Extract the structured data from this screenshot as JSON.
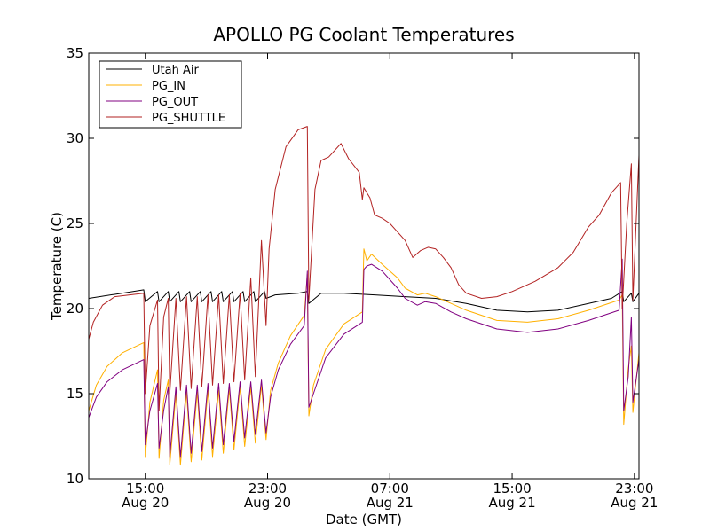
{
  "chart_data": {
    "type": "line",
    "title": "APOLLO PG Coolant Temperatures",
    "xlabel": "Date (GMT)",
    "ylabel": "Temperature (C)",
    "x_unit": "hours since Aug 20 00:00 GMT",
    "xlim": [
      11.3,
      47.3
    ],
    "ylim": [
      10,
      35
    ],
    "yticks": [
      10,
      15,
      20,
      25,
      30,
      35
    ],
    "xticks": [
      {
        "x": 15,
        "line1": "15:00",
        "line2": "Aug 20"
      },
      {
        "x": 23,
        "line1": "23:00",
        "line2": "Aug 20"
      },
      {
        "x": 31,
        "line1": "07:00",
        "line2": "Aug 21"
      },
      {
        "x": 39,
        "line1": "15:00",
        "line2": "Aug 21"
      },
      {
        "x": 47,
        "line1": "23:00",
        "line2": "Aug 21"
      }
    ],
    "legend_position": "top-left",
    "series": [
      {
        "name": "Utah Air",
        "color": "#000000",
        "points": [
          [
            11.3,
            20.6
          ],
          [
            14.9,
            21.1
          ],
          [
            15.0,
            20.4
          ],
          [
            15.8,
            21.0
          ],
          [
            15.9,
            20.4
          ],
          [
            16.5,
            21.0
          ],
          [
            16.6,
            20.4
          ],
          [
            17.2,
            21.0
          ],
          [
            17.3,
            20.4
          ],
          [
            17.9,
            21.0
          ],
          [
            18.0,
            20.4
          ],
          [
            18.6,
            21.0
          ],
          [
            18.7,
            20.4
          ],
          [
            19.3,
            21.0
          ],
          [
            19.4,
            20.4
          ],
          [
            20.0,
            21.0
          ],
          [
            20.1,
            20.4
          ],
          [
            20.7,
            21.0
          ],
          [
            20.8,
            20.4
          ],
          [
            21.4,
            21.0
          ],
          [
            21.5,
            20.4
          ],
          [
            22.1,
            21.0
          ],
          [
            22.2,
            20.4
          ],
          [
            22.8,
            21.0
          ],
          [
            22.9,
            20.6
          ],
          [
            23.5,
            20.8
          ],
          [
            25.0,
            20.9
          ],
          [
            25.6,
            21.0
          ],
          [
            25.7,
            20.3
          ],
          [
            26.5,
            20.9
          ],
          [
            28.0,
            20.9
          ],
          [
            30.0,
            20.8
          ],
          [
            32.0,
            20.7
          ],
          [
            34.0,
            20.6
          ],
          [
            36.0,
            20.3
          ],
          [
            38.0,
            19.9
          ],
          [
            40.0,
            19.8
          ],
          [
            42.0,
            19.9
          ],
          [
            44.0,
            20.3
          ],
          [
            45.5,
            20.6
          ],
          [
            46.2,
            21.0
          ],
          [
            46.3,
            20.4
          ],
          [
            46.8,
            20.9
          ],
          [
            46.9,
            20.4
          ],
          [
            47.3,
            20.9
          ]
        ]
      },
      {
        "name": "PG_IN",
        "color": "#ffb000",
        "points": [
          [
            11.3,
            14.0
          ],
          [
            11.8,
            15.5
          ],
          [
            12.5,
            16.6
          ],
          [
            13.5,
            17.4
          ],
          [
            14.9,
            18.0
          ],
          [
            15.0,
            11.3
          ],
          [
            15.3,
            14.5
          ],
          [
            15.8,
            16.4
          ],
          [
            15.9,
            11.2
          ],
          [
            16.2,
            14.6
          ],
          [
            16.5,
            15.8
          ],
          [
            16.6,
            10.8
          ],
          [
            17.0,
            15.0
          ],
          [
            17.3,
            10.8
          ],
          [
            17.7,
            15.1
          ],
          [
            18.0,
            11.0
          ],
          [
            18.4,
            15.1
          ],
          [
            18.7,
            11.1
          ],
          [
            19.1,
            15.2
          ],
          [
            19.4,
            11.3
          ],
          [
            19.8,
            15.2
          ],
          [
            20.1,
            11.5
          ],
          [
            20.5,
            15.3
          ],
          [
            20.8,
            11.7
          ],
          [
            21.2,
            15.4
          ],
          [
            21.5,
            11.9
          ],
          [
            21.9,
            15.4
          ],
          [
            22.2,
            12.1
          ],
          [
            22.6,
            15.5
          ],
          [
            22.9,
            12.3
          ],
          [
            23.2,
            15.2
          ],
          [
            23.7,
            16.8
          ],
          [
            24.5,
            18.4
          ],
          [
            25.4,
            19.6
          ],
          [
            25.6,
            22.0
          ],
          [
            25.7,
            13.7
          ],
          [
            26.0,
            15.5
          ],
          [
            26.8,
            17.6
          ],
          [
            28.0,
            19.1
          ],
          [
            29.2,
            19.8
          ],
          [
            29.3,
            23.5
          ],
          [
            29.5,
            22.8
          ],
          [
            29.8,
            23.2
          ],
          [
            30.5,
            22.6
          ],
          [
            31.5,
            21.8
          ],
          [
            32.0,
            21.2
          ],
          [
            32.8,
            20.8
          ],
          [
            33.3,
            20.9
          ],
          [
            34.0,
            20.7
          ],
          [
            35.0,
            20.3
          ],
          [
            36.0,
            19.9
          ],
          [
            38.0,
            19.3
          ],
          [
            40.0,
            19.2
          ],
          [
            42.0,
            19.4
          ],
          [
            44.0,
            19.9
          ],
          [
            46.0,
            20.5
          ],
          [
            46.2,
            20.8
          ],
          [
            46.3,
            13.2
          ],
          [
            46.6,
            16.5
          ],
          [
            46.8,
            17.8
          ],
          [
            46.9,
            13.9
          ],
          [
            47.3,
            17.4
          ]
        ]
      },
      {
        "name": "PG_OUT",
        "color": "#800080",
        "points": [
          [
            11.3,
            13.6
          ],
          [
            11.8,
            14.8
          ],
          [
            12.5,
            15.7
          ],
          [
            13.5,
            16.4
          ],
          [
            14.9,
            17.0
          ],
          [
            15.0,
            12.0
          ],
          [
            15.3,
            14.0
          ],
          [
            15.8,
            15.6
          ],
          [
            15.9,
            11.8
          ],
          [
            16.2,
            14.0
          ],
          [
            16.5,
            15.4
          ],
          [
            16.6,
            11.3
          ],
          [
            17.0,
            15.4
          ],
          [
            17.3,
            11.3
          ],
          [
            17.7,
            15.5
          ],
          [
            18.0,
            11.5
          ],
          [
            18.4,
            15.5
          ],
          [
            18.7,
            11.6
          ],
          [
            19.1,
            15.6
          ],
          [
            19.4,
            11.8
          ],
          [
            19.8,
            15.6
          ],
          [
            20.1,
            12.0
          ],
          [
            20.5,
            15.6
          ],
          [
            20.8,
            12.2
          ],
          [
            21.2,
            15.7
          ],
          [
            21.5,
            12.4
          ],
          [
            21.9,
            15.7
          ],
          [
            22.2,
            12.6
          ],
          [
            22.6,
            15.8
          ],
          [
            22.9,
            12.7
          ],
          [
            23.2,
            14.8
          ],
          [
            23.7,
            16.4
          ],
          [
            24.5,
            17.9
          ],
          [
            25.4,
            19.0
          ],
          [
            25.6,
            22.2
          ],
          [
            25.7,
            14.2
          ],
          [
            26.0,
            15.0
          ],
          [
            26.8,
            17.1
          ],
          [
            28.0,
            18.5
          ],
          [
            29.2,
            19.2
          ],
          [
            29.3,
            22.3
          ],
          [
            29.5,
            22.5
          ],
          [
            29.8,
            22.6
          ],
          [
            30.5,
            22.2
          ],
          [
            31.5,
            21.2
          ],
          [
            32.0,
            20.6
          ],
          [
            32.8,
            20.2
          ],
          [
            33.3,
            20.4
          ],
          [
            34.0,
            20.3
          ],
          [
            35.0,
            19.8
          ],
          [
            36.0,
            19.4
          ],
          [
            38.0,
            18.8
          ],
          [
            40.0,
            18.6
          ],
          [
            42.0,
            18.8
          ],
          [
            44.0,
            19.3
          ],
          [
            46.0,
            19.9
          ],
          [
            46.2,
            22.9
          ],
          [
            46.3,
            14.0
          ],
          [
            46.6,
            16.0
          ],
          [
            46.8,
            19.5
          ],
          [
            46.9,
            14.5
          ],
          [
            47.3,
            17.0
          ]
        ]
      },
      {
        "name": "PG_SHUTTLE",
        "color": "#b22222",
        "points": [
          [
            11.3,
            18.2
          ],
          [
            11.6,
            19.2
          ],
          [
            12.2,
            20.2
          ],
          [
            13.0,
            20.7
          ],
          [
            14.9,
            20.9
          ],
          [
            15.0,
            15.0
          ],
          [
            15.3,
            19.0
          ],
          [
            15.8,
            20.5
          ],
          [
            15.9,
            14.0
          ],
          [
            16.2,
            19.5
          ],
          [
            16.5,
            20.6
          ],
          [
            16.6,
            15.0
          ],
          [
            17.0,
            20.6
          ],
          [
            17.3,
            15.2
          ],
          [
            17.7,
            20.7
          ],
          [
            18.0,
            15.3
          ],
          [
            18.4,
            20.7
          ],
          [
            18.7,
            15.4
          ],
          [
            19.1,
            20.8
          ],
          [
            19.4,
            15.5
          ],
          [
            19.8,
            20.8
          ],
          [
            20.1,
            15.6
          ],
          [
            20.5,
            20.8
          ],
          [
            20.8,
            15.7
          ],
          [
            21.2,
            20.9
          ],
          [
            21.5,
            15.8
          ],
          [
            21.9,
            21.8
          ],
          [
            22.2,
            16.0
          ],
          [
            22.6,
            24.0
          ],
          [
            22.9,
            19.0
          ],
          [
            23.1,
            23.5
          ],
          [
            23.5,
            27.0
          ],
          [
            24.2,
            29.5
          ],
          [
            25.0,
            30.5
          ],
          [
            25.6,
            30.7
          ],
          [
            25.7,
            20.5
          ],
          [
            26.1,
            27.0
          ],
          [
            26.5,
            28.7
          ],
          [
            27.0,
            28.9
          ],
          [
            27.8,
            29.7
          ],
          [
            28.3,
            28.8
          ],
          [
            29.0,
            28.0
          ],
          [
            29.2,
            26.4
          ],
          [
            29.3,
            27.1
          ],
          [
            29.7,
            26.5
          ],
          [
            30.0,
            25.5
          ],
          [
            30.5,
            25.3
          ],
          [
            31.0,
            25.0
          ],
          [
            32.0,
            24.0
          ],
          [
            32.5,
            23.0
          ],
          [
            33.0,
            23.4
          ],
          [
            33.5,
            23.6
          ],
          [
            34.0,
            23.5
          ],
          [
            34.5,
            23.0
          ],
          [
            35.0,
            22.4
          ],
          [
            35.5,
            21.4
          ],
          [
            36.0,
            20.9
          ],
          [
            37.0,
            20.6
          ],
          [
            38.0,
            20.7
          ],
          [
            39.0,
            21.0
          ],
          [
            40.5,
            21.6
          ],
          [
            42.0,
            22.4
          ],
          [
            43.0,
            23.3
          ],
          [
            44.0,
            24.8
          ],
          [
            44.7,
            25.5
          ],
          [
            45.5,
            26.8
          ],
          [
            46.1,
            27.4
          ],
          [
            46.2,
            20.0
          ],
          [
            46.5,
            25.0
          ],
          [
            46.8,
            28.5
          ],
          [
            46.9,
            20.5
          ],
          [
            47.3,
            29.0
          ]
        ]
      }
    ]
  }
}
